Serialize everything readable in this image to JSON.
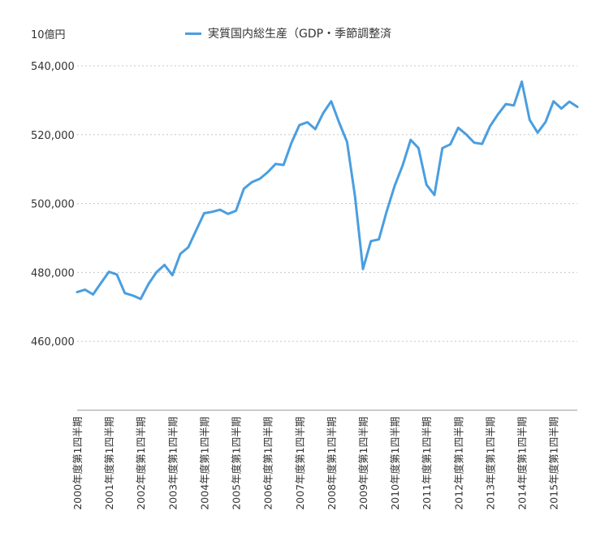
{
  "colors": {
    "series": "#4a9ee0",
    "grid": "#c8c8c8",
    "axis": "#9a9a9a"
  },
  "chart_data": {
    "type": "line",
    "ylabel": "10億円",
    "ylim": [
      440000,
      540000
    ],
    "yticks": [
      {
        "value": 460000,
        "label": "460,000"
      },
      {
        "value": 480000,
        "label": "480,000"
      },
      {
        "value": 500000,
        "label": "500,000"
      },
      {
        "value": 520000,
        "label": "520,000"
      },
      {
        "value": 540000,
        "label": "540,000"
      }
    ],
    "grid": true,
    "legend_position": "top",
    "categories": [
      "2000年度第1四半期",
      "",
      "",
      "",
      "2001年度第1四半期",
      "",
      "",
      "",
      "2002年度第1四半期",
      "",
      "",
      "",
      "2003年度第1四半期",
      "",
      "",
      "",
      "2004年度第1四半期",
      "",
      "",
      "",
      "2005年度第1四半期",
      "",
      "",
      "",
      "2006年度第1四半期",
      "",
      "",
      "",
      "2007年度第1四半期",
      "",
      "",
      "",
      "2008年度第1四半期",
      "",
      "",
      "",
      "2009年度第1四半期",
      "",
      "",
      "",
      "2010年度第1四半期",
      "",
      "",
      "",
      "2011年度第1四半期",
      "",
      "",
      "",
      "2012年度第1四半期",
      "",
      "",
      "",
      "2013年度第1四半期",
      "",
      "",
      "",
      "2014年度第1四半期",
      "",
      "",
      "",
      "2015年度第1四半期",
      "",
      "",
      ""
    ],
    "series": [
      {
        "name": "実質国内総生産（GDP・季節調整済",
        "values": [
          474300,
          475000,
          473600,
          476900,
          480200,
          479400,
          474000,
          473300,
          472300,
          476700,
          480100,
          482200,
          479200,
          485400,
          487300,
          492300,
          497200,
          497600,
          498200,
          497000,
          497900,
          504300,
          506200,
          507200,
          509100,
          511500,
          511200,
          517700,
          522800,
          523600,
          521600,
          526300,
          529700,
          523500,
          517900,
          502100,
          481000,
          489100,
          489600,
          497800,
          505200,
          511100,
          518500,
          516100,
          505500,
          502500,
          516100,
          517200,
          522000,
          520100,
          517700,
          517300,
          522400,
          525900,
          528900,
          528500,
          535400,
          524300,
          520600,
          523700,
          529700,
          527600,
          529600,
          528100
        ]
      }
    ]
  }
}
